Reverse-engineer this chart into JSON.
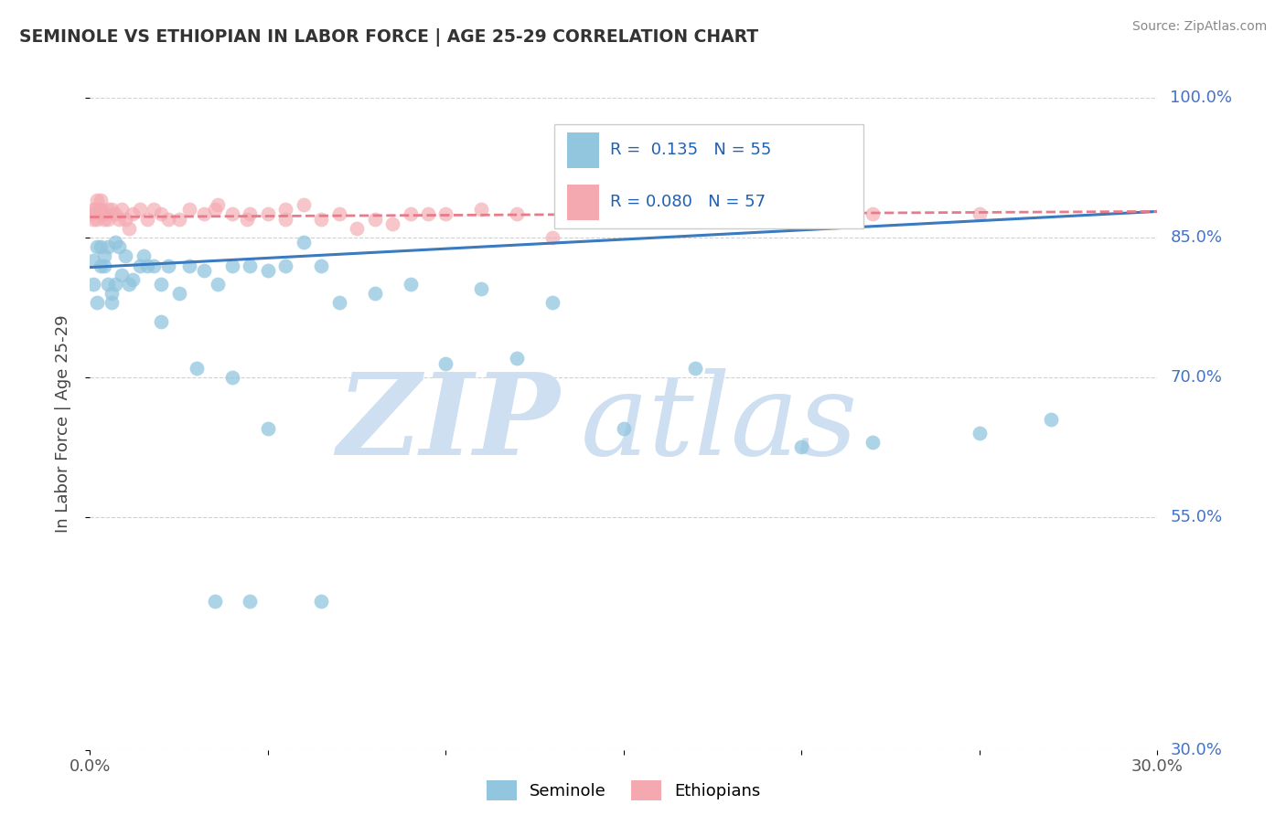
{
  "title": "SEMINOLE VS ETHIOPIAN IN LABOR FORCE | AGE 25-29 CORRELATION CHART",
  "source": "Source: ZipAtlas.com",
  "ylabel": "In Labor Force | Age 25-29",
  "xlim": [
    0.0,
    0.3
  ],
  "ylim": [
    0.3,
    1.0
  ],
  "seminole_R": 0.135,
  "seminole_N": 55,
  "ethiopian_R": 0.08,
  "ethiopian_N": 57,
  "seminole_color": "#92c5de",
  "ethiopian_color": "#f4a8b0",
  "seminole_line_color": "#3a7abf",
  "ethiopian_line_color": "#e87a8a",
  "watermark_color": "#cddff0",
  "background_color": "#ffffff",
  "ytick_color": "#4472c4",
  "seminole_x": [
    0.001,
    0.001,
    0.002,
    0.002,
    0.003,
    0.003,
    0.004,
    0.004,
    0.005,
    0.005,
    0.006,
    0.006,
    0.007,
    0.007,
    0.008,
    0.009,
    0.01,
    0.011,
    0.012,
    0.014,
    0.015,
    0.016,
    0.018,
    0.02,
    0.022,
    0.025,
    0.028,
    0.032,
    0.036,
    0.04,
    0.045,
    0.05,
    0.055,
    0.06,
    0.065,
    0.07,
    0.08,
    0.09,
    0.1,
    0.11,
    0.12,
    0.13,
    0.15,
    0.17,
    0.2,
    0.22,
    0.25,
    0.27,
    0.02,
    0.03,
    0.04,
    0.05,
    0.035,
    0.045,
    0.065
  ],
  "seminole_y": [
    0.825,
    0.8,
    0.84,
    0.78,
    0.84,
    0.82,
    0.82,
    0.83,
    0.84,
    0.8,
    0.79,
    0.78,
    0.8,
    0.845,
    0.84,
    0.81,
    0.83,
    0.8,
    0.805,
    0.82,
    0.83,
    0.82,
    0.82,
    0.8,
    0.82,
    0.79,
    0.82,
    0.815,
    0.8,
    0.82,
    0.82,
    0.815,
    0.82,
    0.845,
    0.82,
    0.78,
    0.79,
    0.8,
    0.715,
    0.795,
    0.72,
    0.78,
    0.645,
    0.71,
    0.625,
    0.63,
    0.64,
    0.655,
    0.76,
    0.71,
    0.7,
    0.645,
    0.46,
    0.46,
    0.46
  ],
  "ethiopian_x": [
    0.0005,
    0.001,
    0.001,
    0.0015,
    0.002,
    0.002,
    0.003,
    0.003,
    0.004,
    0.004,
    0.005,
    0.005,
    0.006,
    0.007,
    0.008,
    0.009,
    0.01,
    0.011,
    0.012,
    0.014,
    0.016,
    0.018,
    0.02,
    0.022,
    0.025,
    0.028,
    0.032,
    0.036,
    0.04,
    0.044,
    0.05,
    0.055,
    0.06,
    0.07,
    0.08,
    0.09,
    0.1,
    0.11,
    0.12,
    0.14,
    0.16,
    0.18,
    0.2,
    0.22,
    0.25,
    0.13,
    0.15,
    0.075,
    0.065,
    0.085,
    0.095,
    0.035,
    0.045,
    0.055,
    0.135,
    0.165,
    0.19
  ],
  "ethiopian_y": [
    0.875,
    0.87,
    0.88,
    0.88,
    0.89,
    0.87,
    0.88,
    0.89,
    0.875,
    0.87,
    0.88,
    0.87,
    0.88,
    0.875,
    0.87,
    0.88,
    0.87,
    0.86,
    0.875,
    0.88,
    0.87,
    0.88,
    0.875,
    0.87,
    0.87,
    0.88,
    0.875,
    0.885,
    0.875,
    0.87,
    0.875,
    0.88,
    0.885,
    0.875,
    0.87,
    0.875,
    0.875,
    0.88,
    0.875,
    0.875,
    0.875,
    0.88,
    0.885,
    0.875,
    0.875,
    0.85,
    0.875,
    0.86,
    0.87,
    0.865,
    0.875,
    0.88,
    0.875,
    0.87,
    0.87,
    0.875,
    0.88
  ],
  "seminole_line_y0": 0.818,
  "seminole_line_y1": 0.878,
  "ethiopian_line_y0": 0.872,
  "ethiopian_line_y1": 0.878
}
